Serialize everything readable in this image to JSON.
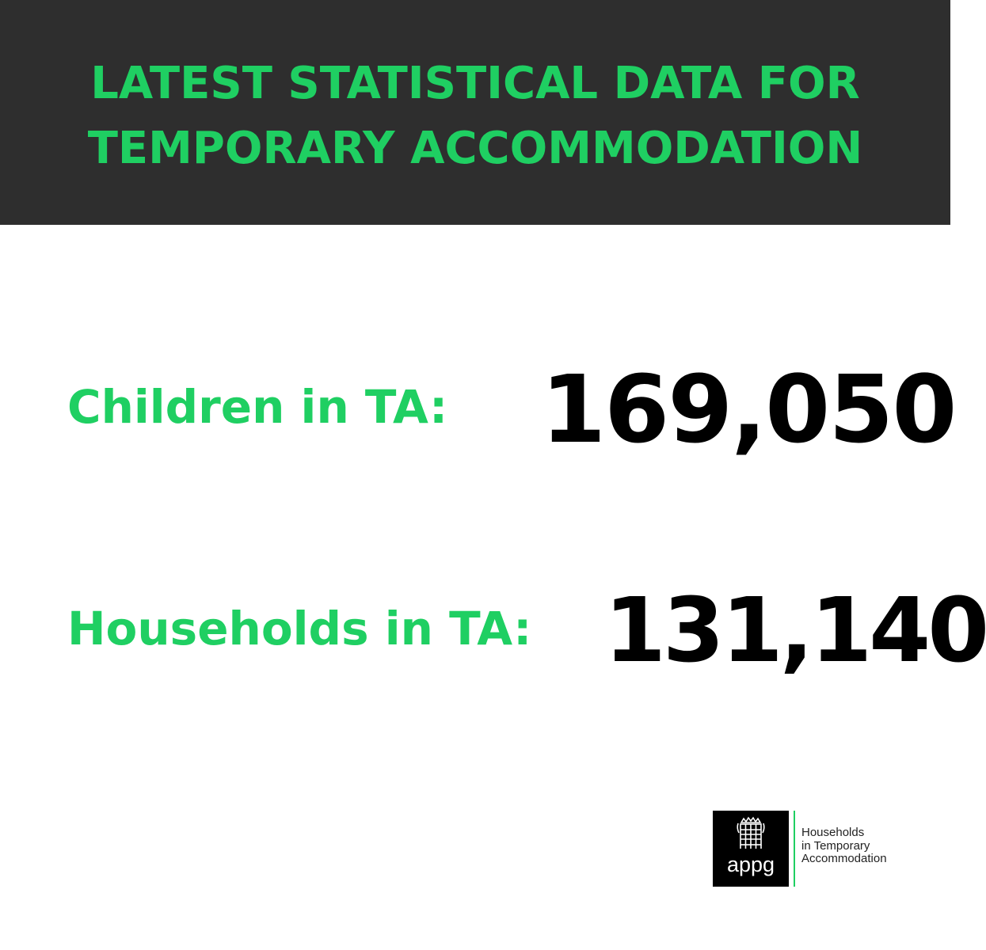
{
  "header": {
    "title_line1": "LATEST STATISTICAL DATA FOR",
    "title_line2": "TEMPORARY ACCOMMODATION"
  },
  "stats": {
    "children": {
      "label": "Children in TA:",
      "value": "169,050"
    },
    "households": {
      "label": "Households in TA:",
      "value": "131,140"
    }
  },
  "logo": {
    "mark_text": "appg",
    "icon": "portcullis-icon",
    "line1": "Households",
    "line2": "in Temporary",
    "line3": "Accommodation"
  },
  "colors": {
    "accent_green": "#1fcf62",
    "header_bg": "#2e2e2e",
    "number_text": "#000000",
    "background": "#ffffff"
  }
}
